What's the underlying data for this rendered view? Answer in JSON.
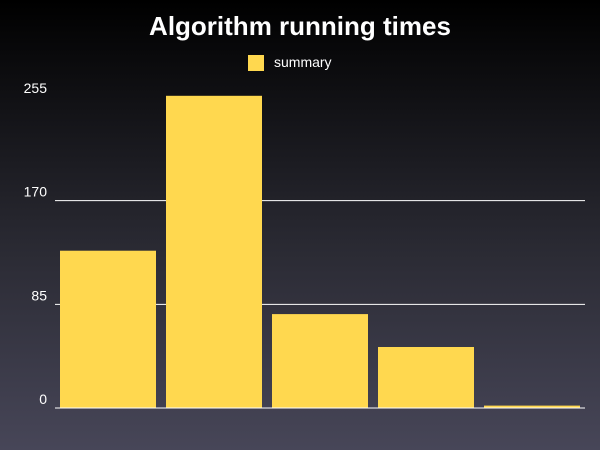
{
  "chart_data": {
    "type": "bar",
    "title": "Algorithm running times",
    "xlabel": "",
    "ylabel": "",
    "categories": [
      "",
      "",
      "",
      "",
      ""
    ],
    "series": [
      {
        "name": "summary",
        "values": [
          129,
          256,
          77,
          50,
          2
        ],
        "color": "#ffd84f"
      }
    ],
    "ylim": [
      0,
      255
    ],
    "yticks": [
      0,
      85,
      170,
      255
    ],
    "grid": true,
    "legend": "top-center"
  }
}
